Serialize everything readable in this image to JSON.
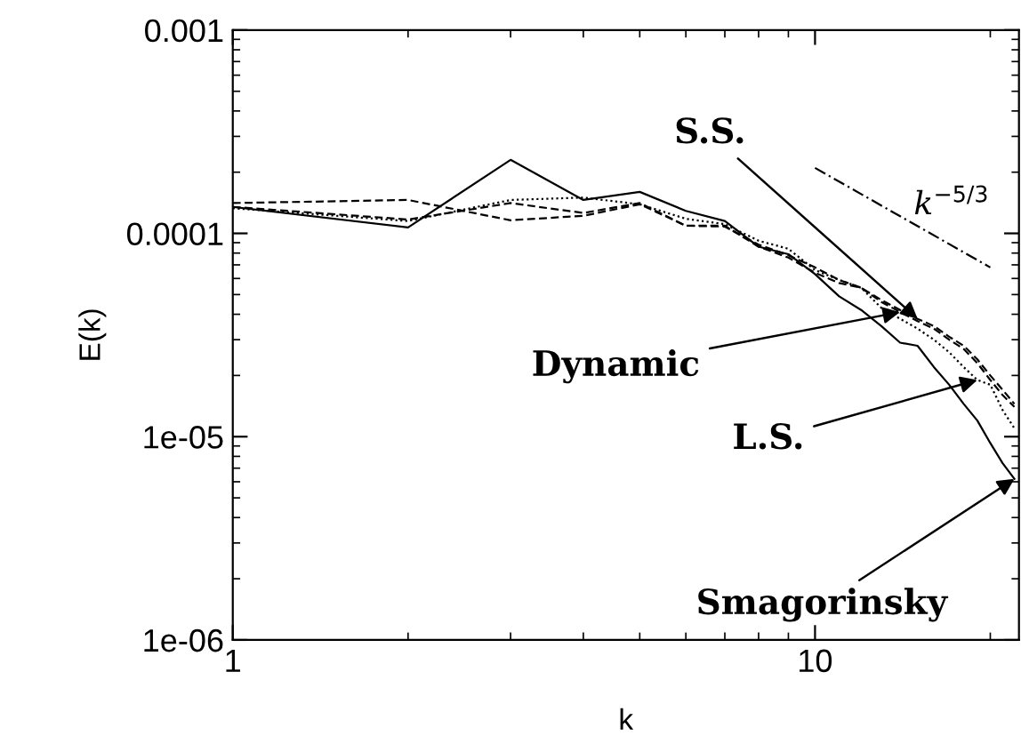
{
  "chart_data": {
    "type": "line",
    "xlabel": "k",
    "ylabel": "E(k)",
    "log": "xy",
    "grid": false,
    "legend": "top right",
    "x": [
      1,
      2,
      3,
      4,
      5,
      6,
      7,
      8,
      9,
      10,
      11,
      12,
      13,
      14,
      15,
      16,
      17,
      18,
      19,
      20,
      21,
      22
    ],
    "xlim": [
      1,
      22.4
    ],
    "xticks": [
      1,
      10
    ],
    "ylim": [
      1e-06,
      0.001
    ],
    "yticks": [
      {
        "value": 1e-06,
        "label": "1e-06"
      },
      {
        "value": 1e-05,
        "label": "1e-05"
      },
      {
        "value": 0.0001,
        "label": "0.0001"
      },
      {
        "value": 0.001,
        "label": "0.001"
      }
    ],
    "series": [
      {
        "color": "#000000",
        "line_style": "solid",
        "values": [
          0.000135,
          0.000107,
          0.00023,
          0.000146,
          0.00016,
          0.000129,
          0.000115,
          8.6e-05,
          7.9e-05,
          6.3e-05,
          4.9e-05,
          4.2e-05,
          3.5e-05,
          2.9e-05,
          2.8e-05,
          2.2e-05,
          1.8e-05,
          1.45e-05,
          1.2e-05,
          9.3e-06,
          7.4e-06,
          6.2e-06
        ]
      },
      {
        "color": "#000000",
        "line_style": "dotted",
        "values": [
          0.000133,
          0.000115,
          0.000146,
          0.00015,
          0.000139,
          0.000118,
          0.000111,
          9.2e-05,
          8.4e-05,
          6.6e-05,
          5.9e-05,
          5.4e-05,
          4.3e-05,
          3.8e-05,
          3.4e-05,
          3e-05,
          2.6e-05,
          2.2e-05,
          1.9e-05,
          1.8e-05,
          1.35e-05,
          1.1e-05
        ]
      },
      {
        "color": "#000000",
        "line_style": "dashed",
        "values": [
          0.000141,
          0.000146,
          0.000116,
          0.000122,
          0.000139,
          0.000109,
          0.000108,
          8.8e-05,
          7.8e-05,
          6.8e-05,
          5.9e-05,
          5.4e-05,
          4.7e-05,
          4.2e-05,
          3.8e-05,
          3.5e-05,
          3.1e-05,
          2.8e-05,
          2.4e-05,
          2e-05,
          1.7e-05,
          1.45e-05
        ]
      },
      {
        "color": "#000000",
        "line_style": "dashed",
        "values": [
          0.000135,
          0.000117,
          0.000141,
          0.000126,
          0.000141,
          0.000109,
          0.000109,
          8.6e-05,
          7.6e-05,
          6.4e-05,
          5.7e-05,
          5.4e-05,
          4.6e-05,
          4.1e-05,
          3.7e-05,
          3.4e-05,
          3e-05,
          2.7e-05,
          2.3e-05,
          1.9e-05,
          1.6e-05,
          1.4e-05
        ]
      },
      {
        "name": "k$^{−5/3}$",
        "color": "#000000",
        "line_style": "dashdot",
        "x": [
          10,
          20
        ],
        "values": [
          0.00021,
          6.8e-05
        ]
      }
    ],
    "annotations": [
      {
        "text": "S.S.",
        "x": 15,
        "y": 3.8e-05
      },
      {
        "text": "Dynamic",
        "x": 14,
        "y": 4.1e-05
      },
      {
        "text": "L.S.",
        "x": 19,
        "y": 1.9e-05
      },
      {
        "text": "Smagorinsky",
        "x": 22,
        "y": 6.2e-06
      }
    ]
  }
}
